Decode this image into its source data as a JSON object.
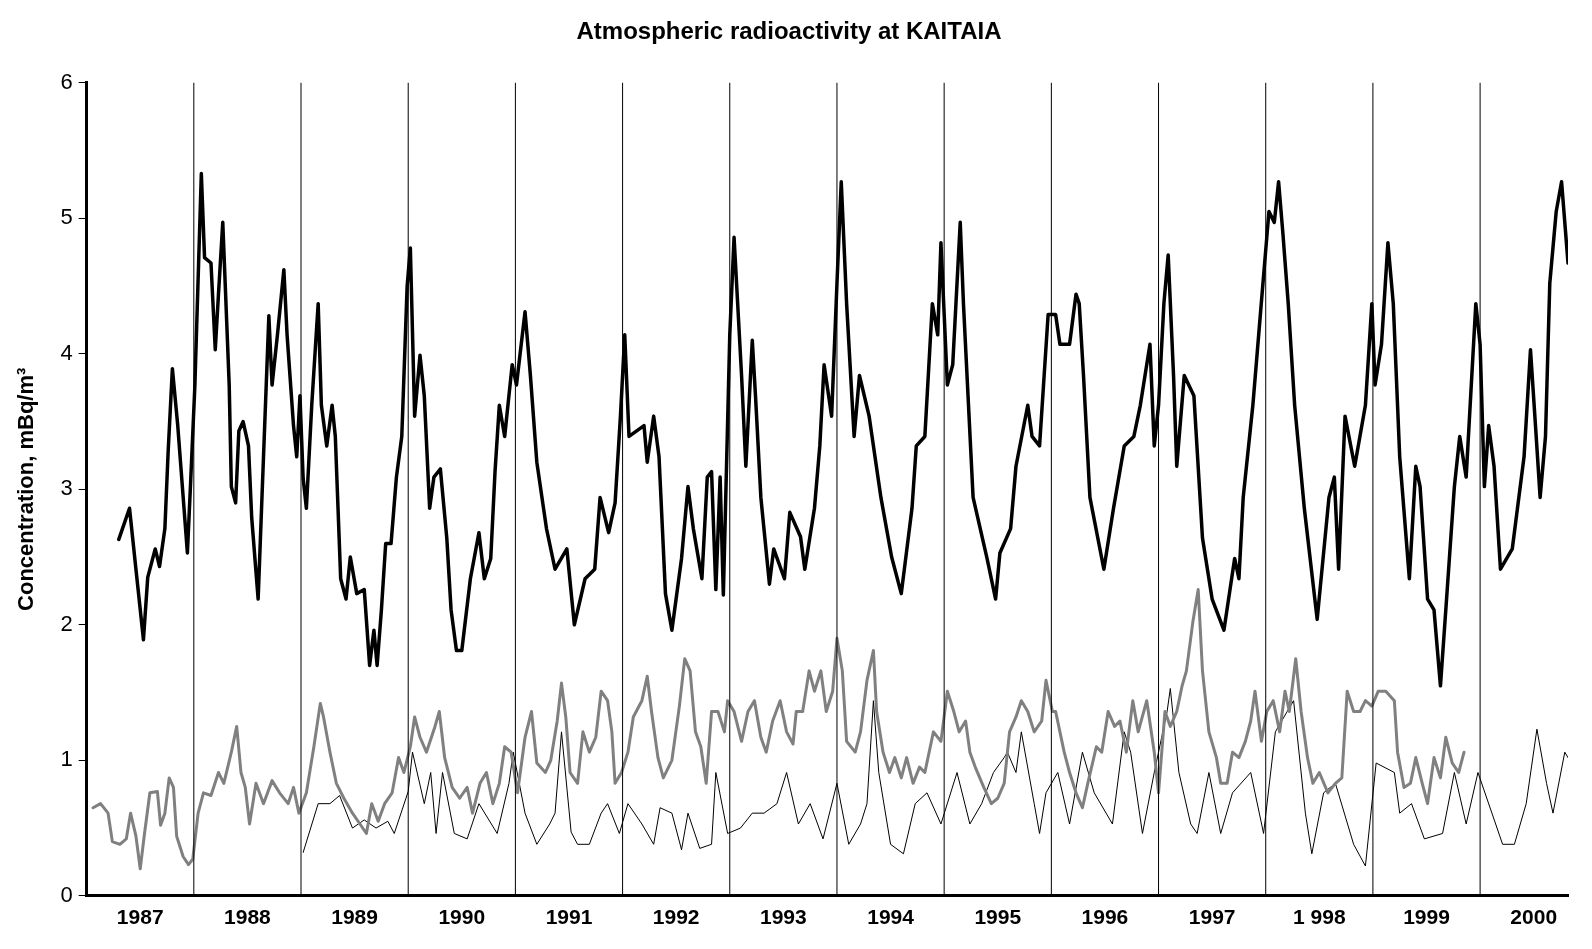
{
  "chart_data": {
    "type": "line",
    "title": "Atmospheric radioactivity at KAITAIA",
    "ylabel": "Concentration, mBq/m³",
    "xlim": [
      1987,
      2000.82
    ],
    "ylim": [
      0,
      6
    ],
    "yticks": [
      0,
      1,
      2,
      3,
      4,
      5,
      6
    ],
    "xticks": [
      {
        "value": 1987.5,
        "label": "1987"
      },
      {
        "value": 1988.5,
        "label": "1988"
      },
      {
        "value": 1989.5,
        "label": "1989"
      },
      {
        "value": 1990.5,
        "label": "1990"
      },
      {
        "value": 1991.5,
        "label": "1991"
      },
      {
        "value": 1992.5,
        "label": "1992"
      },
      {
        "value": 1993.5,
        "label": "1993"
      },
      {
        "value": 1994.5,
        "label": "1994"
      },
      {
        "value": 1995.5,
        "label": "1995"
      },
      {
        "value": 1996.5,
        "label": "1996"
      },
      {
        "value": 1997.5,
        "label": "1997"
      },
      {
        "value": 1998.5,
        "label": "1 998"
      },
      {
        "value": 1999.5,
        "label": "1999"
      },
      {
        "value": 2000.5,
        "label": "2000"
      }
    ],
    "ref_lines": [
      {
        "axis": "x",
        "value": 1988,
        "color": "#000000"
      },
      {
        "axis": "x",
        "value": 1989,
        "color": "#000000"
      },
      {
        "axis": "x",
        "value": 1990,
        "color": "#000000"
      },
      {
        "axis": "x",
        "value": 1991,
        "color": "#000000"
      },
      {
        "axis": "x",
        "value": 1992,
        "color": "#000000"
      },
      {
        "axis": "x",
        "value": 1993,
        "color": "#000000"
      },
      {
        "axis": "x",
        "value": 1994,
        "color": "#000000"
      },
      {
        "axis": "x",
        "value": 1995,
        "color": "#000000"
      },
      {
        "axis": "x",
        "value": 1996,
        "color": "#000000"
      },
      {
        "axis": "x",
        "value": 1997,
        "color": "#000000"
      },
      {
        "axis": "x",
        "value": 1998,
        "color": "#000000"
      },
      {
        "axis": "x",
        "value": 1999,
        "color": "#000000"
      },
      {
        "axis": "x",
        "value": 2000,
        "color": "#000000"
      }
    ],
    "grid": false,
    "legend": false,
    "marker": "none",
    "line_style": "solid",
    "series": [
      {
        "color": "#000000",
        "x": [
          1987.3,
          1987.4,
          1987.46,
          1987.53,
          1987.57,
          1987.64,
          1987.68,
          1987.73,
          1987.76,
          1987.8,
          1987.85,
          1987.94,
          1987.97,
          1988.01,
          1988.07,
          1988.1,
          1988.16,
          1988.2,
          1988.23,
          1988.27,
          1988.33,
          1988.35,
          1988.39,
          1988.42,
          1988.46,
          1988.51,
          1988.54,
          1988.6,
          1988.65,
          1988.7,
          1988.73,
          1988.78,
          1988.84,
          1988.87,
          1988.93,
          1988.96,
          1988.99,
          1989.02,
          1989.05,
          1989.1,
          1989.16,
          1989.19,
          1989.24,
          1989.29,
          1989.32,
          1989.37,
          1989.42,
          1989.46,
          1989.52,
          1989.59,
          1989.64,
          1989.68,
          1989.71,
          1989.75,
          1989.79,
          1989.84,
          1989.89,
          1989.94,
          1989.99,
          1990.02,
          1990.06,
          1990.11,
          1990.15,
          1990.2,
          1990.24,
          1990.3,
          1990.36,
          1990.4,
          1990.45,
          1990.5,
          1990.58,
          1990.66,
          1990.71,
          1990.77,
          1990.81,
          1990.85,
          1990.9,
          1990.97,
          1991.01,
          1991.09,
          1991.14,
          1991.2,
          1991.29,
          1991.37,
          1991.48,
          1991.55,
          1991.65,
          1991.74,
          1991.79,
          1991.87,
          1991.93,
          1991.98,
          1992.02,
          1992.06,
          1992.2,
          1992.23,
          1992.29,
          1992.34,
          1992.4,
          1992.46,
          1992.55,
          1992.61,
          1992.66,
          1992.74,
          1992.79,
          1992.83,
          1992.87,
          1992.91,
          1992.94,
          1993.0,
          1993.04,
          1993.11,
          1993.15,
          1993.21,
          1993.24,
          1993.29,
          1993.37,
          1993.41,
          1993.51,
          1993.56,
          1993.66,
          1993.7,
          1993.79,
          1993.84,
          1993.88,
          1993.95,
          1994.0,
          1994.04,
          1994.09,
          1994.16,
          1994.21,
          1994.3,
          1994.41,
          1994.51,
          1994.6,
          1994.7,
          1994.74,
          1994.82,
          1994.89,
          1994.94,
          1994.97,
          1995.03,
          1995.08,
          1995.15,
          1995.18,
          1995.27,
          1995.4,
          1995.48,
          1995.52,
          1995.62,
          1995.67,
          1995.78,
          1995.82,
          1995.89,
          1995.97,
          1996.04,
          1996.08,
          1996.17,
          1996.23,
          1996.26,
          1996.3,
          1996.36,
          1996.49,
          1996.58,
          1996.68,
          1996.77,
          1996.83,
          1996.92,
          1996.96,
          1997.0,
          1997.05,
          1997.09,
          1997.14,
          1997.17,
          1997.24,
          1997.33,
          1997.41,
          1997.5,
          1997.61,
          1997.71,
          1997.75,
          1997.79,
          1997.88,
          1997.95,
          1998.03,
          1998.08,
          1998.12,
          1998.16,
          1998.21,
          1998.27,
          1998.36,
          1998.48,
          1998.59,
          1998.64,
          1998.68,
          1998.74,
          1998.83,
          1998.93,
          1998.99,
          1999.02,
          1999.08,
          1999.14,
          1999.19,
          1999.25,
          1999.34,
          1999.4,
          1999.44,
          1999.51,
          1999.57,
          1999.63,
          1999.68,
          1999.76,
          1999.81,
          1999.87,
          1999.96,
          2000.0,
          2000.04,
          2000.08,
          2000.13,
          2000.19,
          2000.3,
          2000.41,
          2000.47,
          2000.52,
          2000.56,
          2000.61,
          2000.65,
          2000.71,
          2000.76,
          2000.82
        ],
        "values": [
          2.63,
          2.86,
          2.41,
          1.89,
          2.35,
          2.56,
          2.43,
          2.71,
          3.27,
          3.89,
          3.47,
          2.53,
          3.05,
          3.77,
          5.33,
          4.71,
          4.67,
          4.03,
          4.44,
          4.97,
          3.77,
          3.02,
          2.9,
          3.43,
          3.5,
          3.32,
          2.79,
          2.19,
          3.24,
          4.28,
          3.77,
          4.14,
          4.62,
          4.14,
          3.47,
          3.24,
          3.69,
          3.08,
          2.86,
          3.62,
          4.37,
          3.62,
          3.32,
          3.62,
          3.39,
          2.34,
          2.19,
          2.5,
          2.23,
          2.26,
          1.7,
          1.96,
          1.7,
          2.11,
          2.6,
          2.6,
          3.09,
          3.39,
          4.5,
          4.78,
          3.54,
          3.99,
          3.69,
          2.86,
          3.09,
          3.15,
          2.64,
          2.11,
          1.81,
          1.81,
          2.34,
          2.68,
          2.34,
          2.49,
          3.13,
          3.62,
          3.39,
          3.92,
          3.77,
          4.31,
          3.84,
          3.2,
          2.71,
          2.41,
          2.56,
          2.0,
          2.34,
          2.41,
          2.94,
          2.68,
          2.9,
          3.54,
          4.14,
          3.39,
          3.47,
          3.2,
          3.54,
          3.24,
          2.23,
          1.96,
          2.49,
          3.02,
          2.71,
          2.34,
          3.09,
          3.13,
          2.26,
          3.09,
          2.22,
          4.14,
          4.86,
          3.84,
          3.17,
          4.1,
          3.69,
          2.94,
          2.3,
          2.56,
          2.34,
          2.83,
          2.65,
          2.41,
          2.86,
          3.32,
          3.92,
          3.54,
          4.52,
          5.27,
          4.37,
          3.39,
          3.84,
          3.54,
          2.94,
          2.5,
          2.23,
          2.86,
          3.32,
          3.39,
          4.37,
          4.14,
          4.82,
          3.77,
          3.92,
          4.97,
          4.37,
          2.94,
          2.49,
          2.19,
          2.53,
          2.71,
          3.17,
          3.62,
          3.39,
          3.32,
          4.29,
          4.29,
          4.07,
          4.07,
          4.44,
          4.37,
          3.84,
          2.94,
          2.41,
          2.86,
          3.32,
          3.39,
          3.62,
          4.07,
          3.32,
          3.62,
          4.37,
          4.73,
          3.84,
          3.17,
          3.84,
          3.69,
          2.64,
          2.19,
          1.96,
          2.49,
          2.34,
          2.94,
          3.62,
          4.29,
          5.05,
          4.97,
          5.27,
          4.89,
          4.37,
          3.62,
          2.86,
          2.04,
          2.94,
          3.09,
          2.41,
          3.54,
          3.17,
          3.62,
          4.37,
          3.77,
          4.07,
          4.82,
          4.37,
          3.24,
          2.34,
          3.17,
          3.02,
          2.19,
          2.11,
          1.55,
          2.11,
          3.02,
          3.39,
          3.09,
          4.37,
          4.07,
          3.02,
          3.47,
          3.17,
          2.41,
          2.56,
          3.24,
          4.03,
          3.43,
          2.94,
          3.39,
          4.52,
          5.05,
          5.27,
          4.67
        ]
      },
      {
        "color": "#808080",
        "x": [
          1987.06,
          1987.13,
          1987.2,
          1987.24,
          1987.31,
          1987.37,
          1987.41,
          1987.46,
          1987.5,
          1987.54,
          1987.59,
          1987.66,
          1987.69,
          1987.73,
          1987.77,
          1987.81,
          1987.84,
          1987.9,
          1987.95,
          1987.99,
          1988.04,
          1988.09,
          1988.16,
          1988.23,
          1988.28,
          1988.35,
          1988.4,
          1988.44,
          1988.48,
          1988.52,
          1988.58,
          1988.65,
          1988.73,
          1988.8,
          1988.88,
          1988.93,
          1988.98,
          1989.05,
          1989.12,
          1989.18,
          1989.21,
          1989.27,
          1989.33,
          1989.4,
          1989.48,
          1989.55,
          1989.61,
          1989.66,
          1989.72,
          1989.78,
          1989.85,
          1989.91,
          1989.96,
          1990.02,
          1990.06,
          1990.11,
          1990.17,
          1990.25,
          1990.29,
          1990.34,
          1990.41,
          1990.48,
          1990.55,
          1990.6,
          1990.67,
          1990.73,
          1990.79,
          1990.85,
          1990.9,
          1990.96,
          1991.02,
          1991.09,
          1991.15,
          1991.2,
          1991.28,
          1991.33,
          1991.39,
          1991.43,
          1991.47,
          1991.51,
          1991.58,
          1991.63,
          1991.69,
          1991.75,
          1991.8,
          1991.86,
          1991.9,
          1991.93,
          1991.99,
          1992.05,
          1992.1,
          1992.18,
          1992.23,
          1992.27,
          1992.33,
          1992.38,
          1992.46,
          1992.53,
          1992.58,
          1992.63,
          1992.68,
          1992.73,
          1992.78,
          1992.83,
          1992.89,
          1992.95,
          1992.98,
          1993.04,
          1993.11,
          1993.17,
          1993.23,
          1993.29,
          1993.34,
          1993.4,
          1993.47,
          1993.53,
          1993.59,
          1993.62,
          1993.68,
          1993.74,
          1993.79,
          1993.85,
          1993.9,
          1993.96,
          1994.0,
          1994.05,
          1994.09,
          1994.17,
          1994.22,
          1994.28,
          1994.34,
          1994.37,
          1994.43,
          1994.49,
          1994.54,
          1994.6,
          1994.65,
          1994.71,
          1994.77,
          1994.82,
          1994.9,
          1994.97,
          1995.03,
          1995.09,
          1995.14,
          1995.2,
          1995.24,
          1995.29,
          1995.37,
          1995.44,
          1995.5,
          1995.56,
          1995.61,
          1995.67,
          1995.72,
          1995.78,
          1995.84,
          1995.91,
          1995.95,
          1996.01,
          1996.04,
          1996.12,
          1996.17,
          1996.23,
          1996.29,
          1996.34,
          1996.42,
          1996.47,
          1996.53,
          1996.59,
          1996.64,
          1996.7,
          1996.76,
          1996.81,
          1996.89,
          1996.96,
          1997.0,
          1997.06,
          1997.11,
          1997.17,
          1997.22,
          1997.26,
          1997.32,
          1997.37,
          1997.41,
          1997.47,
          1997.54,
          1997.58,
          1997.64,
          1997.69,
          1997.75,
          1997.81,
          1997.86,
          1997.9,
          1997.96,
          1998.01,
          1998.07,
          1998.13,
          1998.18,
          1998.22,
          1998.28,
          1998.33,
          1998.39,
          1998.44,
          1998.5,
          1998.58,
          1998.65,
          1998.71,
          1998.76,
          1998.82,
          1998.88,
          1998.93,
          1998.99,
          1999.05,
          1999.12,
          1999.2,
          1999.23,
          1999.29,
          1999.35,
          1999.4,
          1999.46,
          1999.51,
          1999.57,
          1999.63,
          1999.68,
          1999.74,
          1999.8,
          1999.85
        ],
        "values": [
          0.65,
          0.68,
          0.61,
          0.4,
          0.38,
          0.42,
          0.61,
          0.44,
          0.2,
          0.46,
          0.76,
          0.77,
          0.52,
          0.61,
          0.87,
          0.8,
          0.44,
          0.29,
          0.23,
          0.27,
          0.61,
          0.76,
          0.74,
          0.91,
          0.83,
          1.06,
          1.25,
          0.91,
          0.8,
          0.53,
          0.83,
          0.68,
          0.85,
          0.76,
          0.68,
          0.8,
          0.61,
          0.76,
          1.1,
          1.42,
          1.32,
          1.06,
          0.83,
          0.72,
          0.61,
          0.53,
          0.46,
          0.68,
          0.55,
          0.68,
          0.76,
          1.02,
          0.91,
          1.1,
          1.32,
          1.17,
          1.06,
          1.25,
          1.36,
          1.02,
          0.8,
          0.72,
          0.8,
          0.61,
          0.83,
          0.91,
          0.68,
          0.83,
          1.1,
          1.06,
          0.76,
          1.17,
          1.36,
          0.98,
          0.91,
          1.0,
          1.29,
          1.57,
          1.32,
          0.91,
          0.83,
          1.21,
          1.06,
          1.17,
          1.51,
          1.44,
          1.21,
          0.83,
          0.91,
          1.06,
          1.32,
          1.44,
          1.62,
          1.36,
          1.02,
          0.87,
          1.0,
          1.4,
          1.75,
          1.66,
          1.21,
          1.1,
          0.83,
          1.36,
          1.36,
          1.21,
          1.44,
          1.36,
          1.14,
          1.36,
          1.44,
          1.17,
          1.06,
          1.29,
          1.44,
          1.21,
          1.12,
          1.36,
          1.36,
          1.66,
          1.51,
          1.66,
          1.36,
          1.51,
          1.9,
          1.66,
          1.14,
          1.06,
          1.21,
          1.59,
          1.81,
          1.36,
          1.06,
          0.91,
          1.02,
          0.87,
          1.02,
          0.83,
          0.95,
          0.91,
          1.21,
          1.14,
          1.51,
          1.36,
          1.21,
          1.29,
          1.06,
          0.95,
          0.8,
          0.68,
          0.72,
          0.83,
          1.21,
          1.32,
          1.44,
          1.36,
          1.21,
          1.29,
          1.59,
          1.36,
          1.36,
          1.06,
          0.91,
          0.76,
          0.65,
          0.83,
          1.1,
          1.06,
          1.36,
          1.25,
          1.29,
          1.06,
          1.44,
          1.21,
          1.44,
          1.06,
          0.76,
          1.36,
          1.25,
          1.36,
          1.55,
          1.66,
          2.02,
          2.26,
          1.66,
          1.21,
          1.02,
          0.83,
          0.83,
          1.06,
          1.02,
          1.14,
          1.29,
          1.51,
          1.14,
          1.36,
          1.44,
          1.21,
          1.51,
          1.36,
          1.75,
          1.36,
          1.02,
          0.83,
          0.91,
          0.76,
          0.83,
          0.87,
          1.51,
          1.36,
          1.36,
          1.44,
          1.4,
          1.51,
          1.51,
          1.44,
          1.06,
          0.8,
          0.83,
          1.02,
          0.83,
          0.68,
          1.02,
          0.87,
          1.17,
          0.98,
          0.91,
          1.06
        ]
      },
      {
        "color": "#000000",
        "x": [
          1989.02,
          1989.16,
          1989.27,
          1989.36,
          1989.48,
          1989.59,
          1989.7,
          1989.81,
          1989.87,
          1990.0,
          1990.04,
          1990.15,
          1990.21,
          1990.26,
          1990.32,
          1990.43,
          1990.55,
          1990.66,
          1990.83,
          1990.94,
          1990.98,
          1991.09,
          1991.2,
          1991.32,
          1991.37,
          1991.43,
          1991.52,
          1991.58,
          1991.69,
          1991.8,
          1991.86,
          1991.97,
          1992.05,
          1992.18,
          1992.29,
          1992.35,
          1992.46,
          1992.55,
          1992.61,
          1992.72,
          1992.83,
          1992.87,
          1992.98,
          1993.1,
          1993.21,
          1993.32,
          1993.44,
          1993.53,
          1993.64,
          1993.75,
          1993.87,
          1994.0,
          1994.11,
          1994.22,
          1994.28,
          1994.34,
          1994.39,
          1994.5,
          1994.62,
          1994.73,
          1994.84,
          1994.97,
          1995.12,
          1995.24,
          1995.35,
          1995.46,
          1995.56,
          1995.59,
          1995.67,
          1995.72,
          1995.84,
          1995.89,
          1995.95,
          1996.06,
          1996.17,
          1996.29,
          1996.4,
          1996.57,
          1996.68,
          1996.74,
          1996.85,
          1996.96,
          1997.08,
          1997.11,
          1997.19,
          1997.3,
          1997.36,
          1997.47,
          1997.58,
          1997.69,
          1997.86,
          1997.98,
          1998.09,
          1998.2,
          1998.26,
          1998.37,
          1998.43,
          1998.54,
          1998.65,
          1998.82,
          1998.93,
          1999.03,
          1999.2,
          1999.25,
          1999.36,
          1999.48,
          1999.65,
          1999.76,
          1999.87,
          1999.98,
          2000.21,
          2000.32,
          2000.43,
          2000.53,
          2000.62,
          2000.68,
          2000.79,
          2000.82
        ],
        "values": [
          0.32,
          0.68,
          0.68,
          0.74,
          0.5,
          0.56,
          0.5,
          0.55,
          0.46,
          0.77,
          1.06,
          0.68,
          0.91,
          0.46,
          0.91,
          0.46,
          0.42,
          0.68,
          0.46,
          0.83,
          1.06,
          0.61,
          0.38,
          0.53,
          0.61,
          1.21,
          0.47,
          0.38,
          0.38,
          0.61,
          0.68,
          0.46,
          0.68,
          0.53,
          0.38,
          0.65,
          0.61,
          0.34,
          0.61,
          0.35,
          0.38,
          0.91,
          0.46,
          0.5,
          0.61,
          0.61,
          0.68,
          0.91,
          0.53,
          0.68,
          0.42,
          0.83,
          0.38,
          0.53,
          0.68,
          1.44,
          0.91,
          0.38,
          0.31,
          0.68,
          0.76,
          0.53,
          0.91,
          0.53,
          0.68,
          0.91,
          1.02,
          1.06,
          0.91,
          1.21,
          0.68,
          0.46,
          0.76,
          0.91,
          0.53,
          1.06,
          0.76,
          0.53,
          1.21,
          1.06,
          0.46,
          0.91,
          1.36,
          1.53,
          0.91,
          0.53,
          0.46,
          0.91,
          0.46,
          0.76,
          0.91,
          0.46,
          1.21,
          1.36,
          1.44,
          0.61,
          0.31,
          0.76,
          0.83,
          0.38,
          0.22,
          0.98,
          0.91,
          0.61,
          0.68,
          0.42,
          0.46,
          0.91,
          0.53,
          0.91,
          0.38,
          0.38,
          0.68,
          1.23,
          0.83,
          0.61,
          1.06,
          1.02
        ]
      }
    ]
  }
}
